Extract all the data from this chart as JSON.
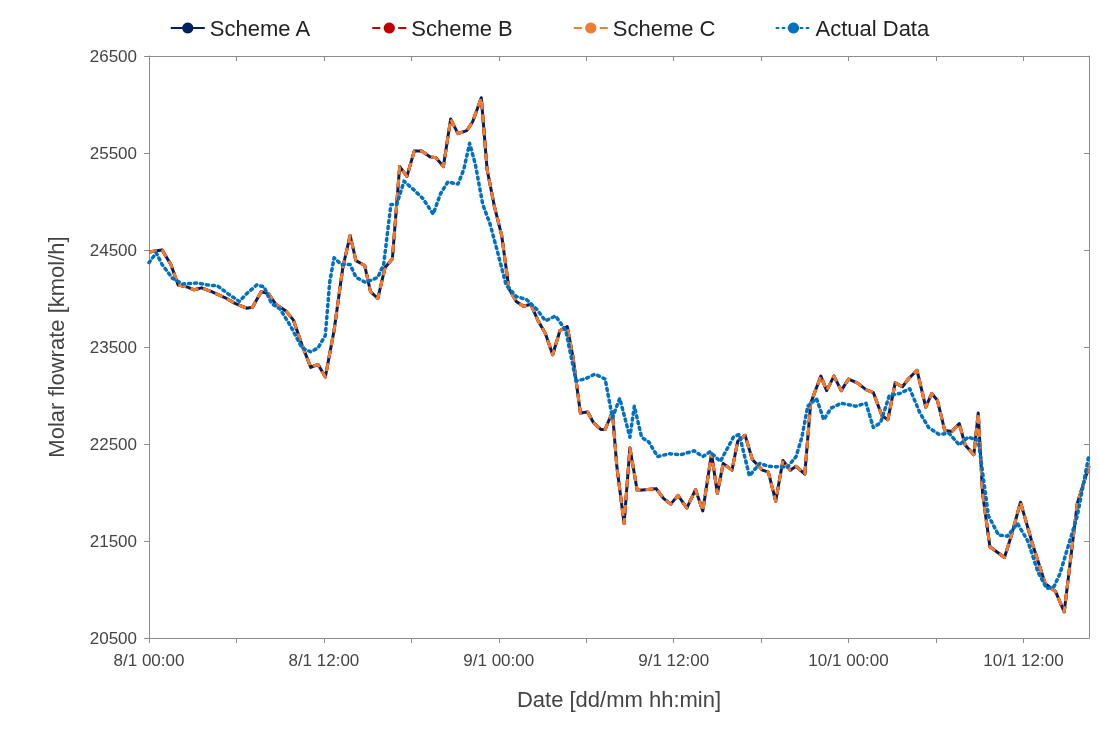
{
  "chart_data": {
    "type": "line",
    "xlabel": "Date [dd/mm hh:min]",
    "ylabel": "Molar flowrate [kmol/h]",
    "legend": "top",
    "grid": false,
    "marker": "none",
    "xlim": [
      "--01-08T00:00",
      "--01-10T16:30"
    ],
    "ylim": [
      20500,
      26500
    ],
    "xticks": [
      {
        "value": "--01-08T00:00",
        "label": "8/1 00:00"
      },
      {
        "value": "--01-08T06:00",
        "label": null
      },
      {
        "value": "--01-08T12:00",
        "label": "8/1 12:00"
      },
      {
        "value": "--01-08T18:00",
        "label": null
      },
      {
        "value": "--01-09T00:00",
        "label": "9/1 00:00"
      },
      {
        "value": "--01-09T06:00",
        "label": null
      },
      {
        "value": "--01-09T12:00",
        "label": "9/1 12:00"
      },
      {
        "value": "--01-09T18:00",
        "label": null
      },
      {
        "value": "--01-10T00:00",
        "label": "10/1 00:00"
      },
      {
        "value": "--01-10T06:00",
        "label": null
      },
      {
        "value": "--01-10T12:00",
        "label": "10/1 12:00"
      }
    ],
    "yticks": [
      20500,
      21500,
      22500,
      23500,
      24500,
      25500,
      26500
    ],
    "x": [
      "--01-08T00:00",
      "--01-08T00:54",
      "--01-08T01:30",
      "--01-08T02:00",
      "--01-08T02:36",
      "--01-08T03:06",
      "--01-08T03:36",
      "--01-08T04:18",
      "--01-08T05:12",
      "--01-08T05:54",
      "--01-08T06:42",
      "--01-08T07:06",
      "--01-08T07:42",
      "--01-08T08:12",
      "--01-08T08:42",
      "--01-08T09:24",
      "--01-08T09:54",
      "--01-08T10:30",
      "--01-08T11:06",
      "--01-08T11:36",
      "--01-08T12:06",
      "--01-08T12:42",
      "--01-08T13:18",
      "--01-08T13:48",
      "--01-08T14:12",
      "--01-08T14:48",
      "--01-08T15:12",
      "--01-08T15:42",
      "--01-08T16:12",
      "--01-08T16:42",
      "--01-08T17:12",
      "--01-08T17:42",
      "--01-08T18:12",
      "--01-08T18:42",
      "--01-08T19:18",
      "--01-08T19:42",
      "--01-08T20:12",
      "--01-08T20:42",
      "--01-08T21:12",
      "--01-08T21:48",
      "--01-08T22:12",
      "--01-08T22:48",
      "--01-08T23:12",
      "--01-08T23:42",
      "--01-09T00:12",
      "--01-09T00:42",
      "--01-09T01:12",
      "--01-09T01:42",
      "--01-09T02:12",
      "--01-09T02:42",
      "--01-09T03:12",
      "--01-09T03:42",
      "--01-09T04:12",
      "--01-09T04:42",
      "--01-09T05:06",
      "--01-09T05:36",
      "--01-09T06:06",
      "--01-09T06:30",
      "--01-09T07:00",
      "--01-09T07:18",
      "--01-09T07:48",
      "--01-09T08:06",
      "--01-09T08:36",
      "--01-09T09:00",
      "--01-09T09:30",
      "--01-09T10:12",
      "--01-09T10:48",
      "--01-09T11:18",
      "--01-09T11:48",
      "--01-09T12:18",
      "--01-09T12:54",
      "--01-09T13:30",
      "--01-09T14:00",
      "--01-09T14:36",
      "--01-09T15:00",
      "--01-09T15:24",
      "--01-09T16:00",
      "--01-09T16:24",
      "--01-09T16:54",
      "--01-09T17:24",
      "--01-09T18:06",
      "--01-09T18:30",
      "--01-09T19:00",
      "--01-09T19:30",
      "--01-09T20:00",
      "--01-09T20:24",
      "--01-09T21:00",
      "--01-09T21:24",
      "--01-09T22:06",
      "--01-09T22:30",
      "--01-09T23:00",
      "--01-09T23:30",
      "--01-10T00:00",
      "--01-10T00:36",
      "--01-10T01:12",
      "--01-10T01:42",
      "--01-10T02:18",
      "--01-10T02:42",
      "--01-10T03:12",
      "--01-10T03:42",
      "--01-10T04:06",
      "--01-10T04:42",
      "--01-10T05:18",
      "--01-10T05:42",
      "--01-10T06:06",
      "--01-10T06:36",
      "--01-10T07:06",
      "--01-10T07:36",
      "--01-10T08:00",
      "--01-10T08:36",
      "--01-10T08:54",
      "--01-10T09:12",
      "--01-10T09:42",
      "--01-10T10:42",
      "--01-10T11:12",
      "--01-10T11:48",
      "--01-10T12:36",
      "--01-10T13:30",
      "--01-10T14:12",
      "--01-10T14:48",
      "--01-10T15:42",
      "--01-10T16:30"
    ],
    "series": [
      {
        "name": "Scheme A",
        "color": "#002060",
        "line_style": "solid",
        "values": [
          24480,
          24500,
          24350,
          24140,
          24120,
          24090,
          24110,
          24070,
          24010,
          23950,
          23900,
          23910,
          24070,
          24050,
          23940,
          23870,
          23780,
          23520,
          23290,
          23320,
          23190,
          23670,
          24320,
          24650,
          24390,
          24340,
          24070,
          24000,
          24320,
          24410,
          25360,
          25260,
          25520,
          25520,
          25460,
          25450,
          25360,
          25850,
          25700,
          25730,
          25820,
          26070,
          25330,
          24950,
          24650,
          24100,
          23970,
          23920,
          23940,
          23770,
          23640,
          23420,
          23670,
          23710,
          23390,
          22820,
          22830,
          22720,
          22650,
          22650,
          22830,
          22270,
          21680,
          22460,
          22020,
          22030,
          22040,
          21940,
          21880,
          21970,
          21840,
          22030,
          21810,
          22400,
          21990,
          22300,
          22230,
          22530,
          22590,
          22340,
          22230,
          22210,
          21910,
          22330,
          22230,
          22270,
          22190,
          22920,
          23200,
          23050,
          23200,
          23050,
          23170,
          23130,
          23060,
          23030,
          22790,
          22750,
          23130,
          23090,
          23170,
          23260,
          22880,
          23020,
          22950,
          22640,
          22630,
          22710,
          22490,
          22390,
          22820,
          21990,
          21440,
          21330,
          21570,
          21900,
          21480,
          21060,
          20980,
          20770,
          21890,
          22270
        ]
      },
      {
        "name": "Scheme B",
        "color": "#c00000",
        "line_style": "dashed",
        "values": [
          24480,
          24500,
          24350,
          24140,
          24120,
          24090,
          24110,
          24070,
          24010,
          23950,
          23900,
          23910,
          24070,
          24050,
          23940,
          23870,
          23780,
          23520,
          23290,
          23320,
          23190,
          23670,
          24320,
          24650,
          24390,
          24340,
          24070,
          24000,
          24320,
          24410,
          25360,
          25260,
          25520,
          25520,
          25460,
          25450,
          25360,
          25850,
          25700,
          25730,
          25820,
          26070,
          25330,
          24950,
          24650,
          24100,
          23970,
          23920,
          23940,
          23770,
          23640,
          23420,
          23670,
          23710,
          23390,
          22820,
          22830,
          22720,
          22650,
          22650,
          22830,
          22270,
          21680,
          22460,
          22020,
          22030,
          22040,
          21940,
          21880,
          21970,
          21840,
          22030,
          21810,
          22400,
          21990,
          22300,
          22230,
          22530,
          22590,
          22340,
          22230,
          22210,
          21910,
          22330,
          22230,
          22270,
          22190,
          22920,
          23200,
          23050,
          23200,
          23050,
          23170,
          23130,
          23060,
          23030,
          22790,
          22750,
          23130,
          23090,
          23170,
          23260,
          22880,
          23020,
          22950,
          22640,
          22630,
          22710,
          22490,
          22390,
          22820,
          21990,
          21440,
          21330,
          21570,
          21900,
          21480,
          21060,
          20980,
          20770,
          21890,
          22270
        ]
      },
      {
        "name": "Scheme C",
        "color": "#ed7d31",
        "line_style": "dashed",
        "values": [
          24480,
          24500,
          24350,
          24140,
          24120,
          24090,
          24110,
          24070,
          24010,
          23950,
          23900,
          23910,
          24070,
          24050,
          23940,
          23870,
          23780,
          23520,
          23290,
          23320,
          23190,
          23670,
          24320,
          24650,
          24390,
          24340,
          24070,
          24000,
          24320,
          24410,
          25360,
          25260,
          25520,
          25520,
          25460,
          25450,
          25360,
          25850,
          25700,
          25730,
          25820,
          26070,
          25330,
          24950,
          24650,
          24100,
          23970,
          23920,
          23940,
          23770,
          23640,
          23420,
          23670,
          23710,
          23390,
          22820,
          22830,
          22720,
          22650,
          22650,
          22830,
          22270,
          21680,
          22460,
          22020,
          22030,
          22040,
          21940,
          21880,
          21970,
          21840,
          22030,
          21810,
          22400,
          21990,
          22300,
          22230,
          22530,
          22590,
          22340,
          22230,
          22210,
          21910,
          22330,
          22230,
          22270,
          22190,
          22920,
          23200,
          23050,
          23200,
          23050,
          23170,
          23130,
          23060,
          23030,
          22790,
          22750,
          23130,
          23090,
          23170,
          23260,
          22880,
          23020,
          22950,
          22640,
          22630,
          22710,
          22490,
          22390,
          22820,
          21990,
          21440,
          21330,
          21570,
          21900,
          21480,
          21060,
          20980,
          20770,
          21890,
          22270
        ]
      },
      {
        "name": "Actual Data",
        "color": "#0070c0",
        "line_style": "dotted",
        "x": [
          "--01-08T00:00",
          "--01-08T00:30",
          "--01-08T00:54",
          "--01-08T01:36",
          "--01-08T02:18",
          "--01-08T03:18",
          "--01-08T04:00",
          "--01-08T04:42",
          "--01-08T05:30",
          "--01-08T06:12",
          "--01-08T06:42",
          "--01-08T07:24",
          "--01-08T07:54",
          "--01-08T08:24",
          "--01-08T09:00",
          "--01-08T09:42",
          "--01-08T10:30",
          "--01-08T11:06",
          "--01-08T11:36",
          "--01-08T12:06",
          "--01-08T12:24",
          "--01-08T12:42",
          "--01-08T13:12",
          "--01-08T13:48",
          "--01-08T14:12",
          "--01-08T14:48",
          "--01-08T15:18",
          "--01-08T15:42",
          "--01-08T16:06",
          "--01-08T16:36",
          "--01-08T17:00",
          "--01-08T17:30",
          "--01-08T18:06",
          "--01-08T18:48",
          "--01-08T19:30",
          "--01-08T20:00",
          "--01-08T20:30",
          "--01-08T21:12",
          "--01-08T21:36",
          "--01-08T22:00",
          "--01-08T22:24",
          "--01-08T22:54",
          "--01-08T23:24",
          "--01-08T23:54",
          "--01-09T00:30",
          "--01-09T01:12",
          "--01-09T01:54",
          "--01-09T02:36",
          "--01-09T03:12",
          "--01-09T03:54",
          "--01-09T04:36",
          "--01-09T05:18",
          "--01-09T05:54",
          "--01-09T06:36",
          "--01-09T07:18",
          "--01-09T07:48",
          "--01-09T08:18",
          "--01-09T09:00",
          "--01-09T09:18",
          "--01-09T09:48",
          "--01-09T10:18",
          "--01-09T10:54",
          "--01-09T11:42",
          "--01-09T12:30",
          "--01-09T13:24",
          "--01-09T14:00",
          "--01-09T14:30",
          "--01-09T15:12",
          "--01-09T16:06",
          "--01-09T16:30",
          "--01-09T17:12",
          "--01-09T17:54",
          "--01-09T18:30",
          "--01-09T19:48",
          "--01-09T20:24",
          "--01-09T20:48",
          "--01-09T21:12",
          "--01-09T21:48",
          "--01-09T22:18",
          "--01-09T22:48",
          "--01-09T23:30",
          "--01-10T00:30",
          "--01-10T01:12",
          "--01-10T01:42",
          "--01-10T02:12",
          "--01-10T02:48",
          "--01-10T03:30",
          "--01-10T04:12",
          "--01-10T04:54",
          "--01-10T05:30",
          "--01-10T06:12",
          "--01-10T06:54",
          "--01-10T07:36",
          "--01-10T08:12",
          "--01-10T08:54",
          "--01-10T09:36",
          "--01-10T10:18",
          "--01-10T10:54",
          "--01-10T11:36",
          "--01-10T12:18",
          "--01-10T13:00",
          "--01-10T13:36",
          "--01-10T14:06",
          "--01-10T14:30",
          "--01-10T15:00",
          "--01-10T15:42",
          "--01-10T16:30"
        ],
        "values": [
          24370,
          24470,
          24350,
          24210,
          24150,
          24160,
          24140,
          24130,
          24040,
          23970,
          24050,
          24140,
          24120,
          23950,
          23890,
          23720,
          23490,
          23450,
          23490,
          23620,
          24170,
          24420,
          24350,
          24350,
          24220,
          24170,
          24190,
          24220,
          24350,
          24970,
          24970,
          25210,
          25130,
          25030,
          24870,
          25080,
          25200,
          25180,
          25330,
          25600,
          25380,
          24970,
          24770,
          24490,
          24140,
          24020,
          23990,
          23890,
          23770,
          23820,
          23670,
          23150,
          23170,
          23220,
          23170,
          22770,
          22970,
          22570,
          22890,
          22570,
          22520,
          22370,
          22400,
          22390,
          22430,
          22370,
          22420,
          22320,
          22570,
          22600,
          22170,
          22300,
          22270,
          22260,
          22370,
          22570,
          22890,
          22970,
          22750,
          22870,
          22920,
          22890,
          22920,
          22670,
          22720,
          23000,
          23020,
          23070,
          22820,
          22670,
          22600,
          22610,
          22490,
          22570,
          22540,
          21760,
          21560,
          21550,
          21680,
          21500,
          21180,
          21010,
          21030,
          21160,
          21410,
          21760,
          22390
        ]
      }
    ]
  }
}
